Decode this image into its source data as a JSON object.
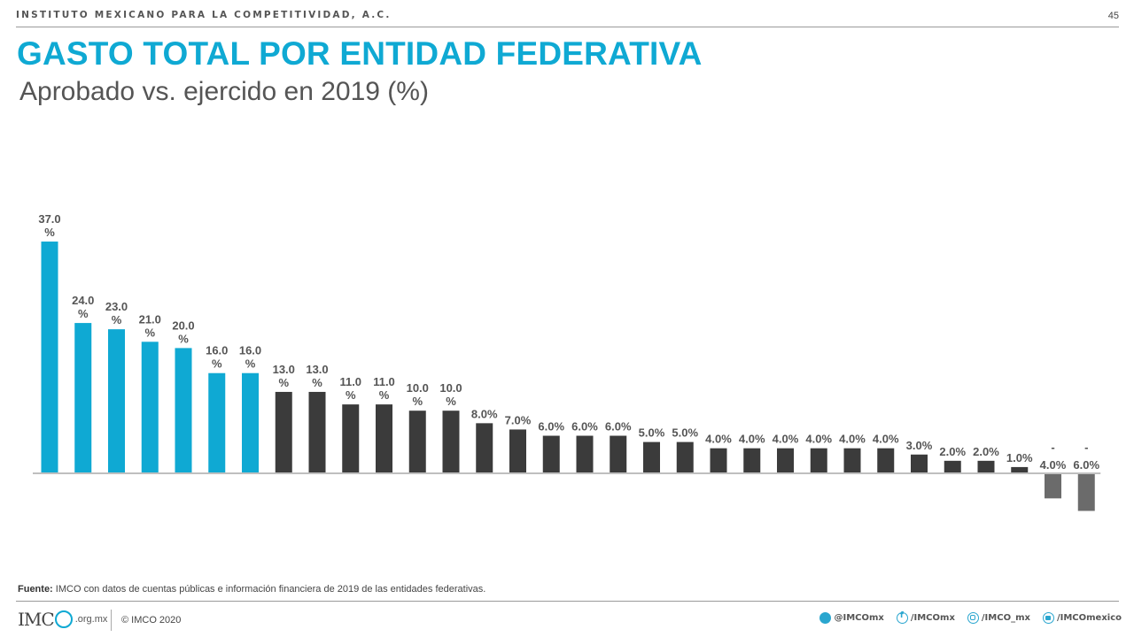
{
  "header": {
    "org": "INSTITUTO MEXICANO PARA LA COMPETITIVIDAD, A.C.",
    "page_number": "45"
  },
  "title": "GASTO TOTAL POR ENTIDAD FEDERATIVA",
  "subtitle": "Aprobado vs. ejercido en 2019 (%)",
  "chart_data": {
    "type": "bar",
    "values": [
      37,
      24,
      23,
      21,
      20,
      16,
      16,
      13,
      13,
      11,
      11,
      10,
      10,
      8,
      7,
      6,
      6,
      6,
      5,
      5,
      4,
      4,
      4,
      4,
      4,
      4,
      3,
      2,
      2,
      1,
      -4,
      -6
    ],
    "labels": [
      "37.0%",
      "24.0%",
      "23.0%",
      "21.0%",
      "20.0%",
      "16.0%",
      "16.0%",
      "13.0%",
      "13.0%",
      "11.0%",
      "11.0%",
      "10.0%",
      "10.0%",
      "8.0%",
      "7.0%",
      "6.0%",
      "6.0%",
      "6.0%",
      "5.0%",
      "5.0%",
      "4.0%",
      "4.0%",
      "4.0%",
      "4.0%",
      "4.0%",
      "4.0%",
      "3.0%",
      "2.0%",
      "2.0%",
      "1.0%",
      "-4.0%",
      "-6.0%"
    ],
    "highlight_count": 7,
    "colors": {
      "highlight": "#0fa9d3",
      "default": "#3b3b3b",
      "negative": "#6b6b6b",
      "axis": "#bfbfbf",
      "label": "#555555"
    },
    "grid": false,
    "legend": "none"
  },
  "source": {
    "label": "Fuente:",
    "text": " IMCO con datos de cuentas públicas e información financiera de 2019 de las entidades federativas."
  },
  "footer": {
    "logo_text": "IMC",
    "logo_domain": ".org.mx",
    "copyright": "© IMCO 2020",
    "socials": [
      {
        "icon": "twitter-icon",
        "handle": "@IMCOmx"
      },
      {
        "icon": "facebook-icon",
        "handle": "/IMCOmx"
      },
      {
        "icon": "instagram-icon",
        "handle": "/IMCO_mx"
      },
      {
        "icon": "youtube-icon",
        "handle": "/IMCOmexico"
      }
    ]
  }
}
